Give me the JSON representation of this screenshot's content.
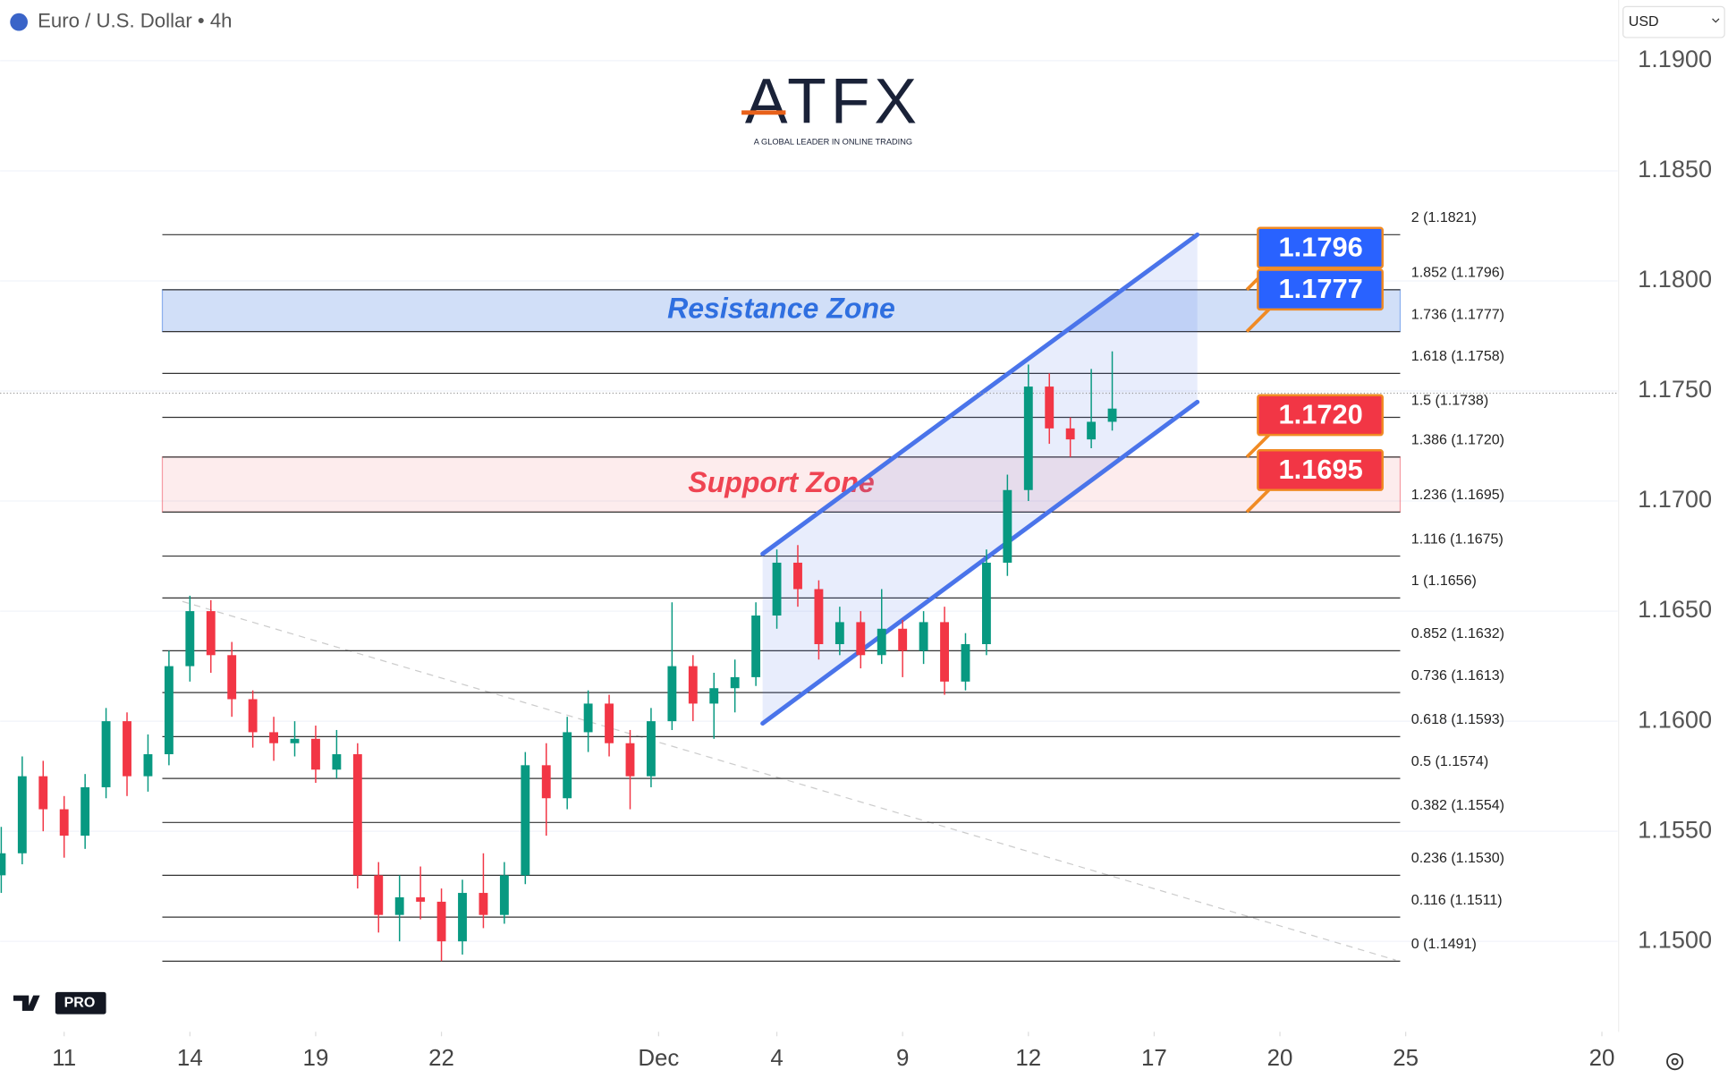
{
  "chart_data": {
    "type": "candlestick",
    "title": "Euro / U.S. Dollar • 4h",
    "currency": "USD",
    "brand": "ATFX",
    "brand_tagline": "A GLOBAL LEADER IN ONLINE TRADING",
    "badge": "PRO",
    "up_color": "#089981",
    "down_color": "#f23645",
    "x": [
      -1.5,
      -1,
      -0.5,
      0,
      0.5,
      1,
      1.5,
      2,
      2.5,
      3,
      3.5,
      4,
      4.5,
      5,
      5.5,
      6,
      6.5,
      7,
      7.5,
      8,
      8.5,
      9,
      9.5,
      10,
      10.5,
      11,
      11.5,
      12,
      12.5,
      13,
      13.5,
      14,
      14.5,
      15,
      15.5,
      16,
      16.5,
      17,
      17.5,
      18,
      18.5,
      19,
      19.5,
      20,
      20.5,
      21,
      21.5,
      22,
      22.5,
      23,
      23.5,
      24,
      24.5,
      25
    ],
    "open": [
      1.153,
      1.154,
      1.1575,
      1.156,
      1.1548,
      1.157,
      1.16,
      1.1575,
      1.1585,
      1.1625,
      1.165,
      1.163,
      1.161,
      1.1595,
      1.159,
      1.1592,
      1.1578,
      1.1585,
      1.153,
      1.1512,
      1.152,
      1.1518,
      1.15,
      1.1522,
      1.1512,
      1.153,
      1.158,
      1.1565,
      1.1595,
      1.1608,
      1.159,
      1.1575,
      1.16,
      1.1625,
      1.1608,
      1.1615,
      1.162,
      1.1648,
      1.1672,
      1.166,
      1.1635,
      1.1645,
      1.163,
      1.1642,
      1.1632,
      1.1645,
      1.1618,
      1.1635,
      1.1672,
      1.1705,
      1.1752,
      1.1733,
      1.1728,
      1.1736
    ],
    "high": [
      1.1552,
      1.1584,
      1.1582,
      1.1566,
      1.1576,
      1.1606,
      1.1604,
      1.1594,
      1.1632,
      1.1657,
      1.1655,
      1.1636,
      1.1614,
      1.1602,
      1.16,
      1.1598,
      1.1596,
      1.159,
      1.1536,
      1.153,
      1.1534,
      1.1524,
      1.1528,
      1.154,
      1.1536,
      1.1586,
      1.159,
      1.1602,
      1.1614,
      1.1612,
      1.1596,
      1.1606,
      1.1654,
      1.163,
      1.1622,
      1.1628,
      1.1654,
      1.1678,
      1.168,
      1.1664,
      1.1652,
      1.165,
      1.166,
      1.1646,
      1.165,
      1.1652,
      1.164,
      1.1678,
      1.1712,
      1.1762,
      1.1758,
      1.1738,
      1.176,
      1.1768
    ],
    "low": [
      1.1522,
      1.1535,
      1.155,
      1.1538,
      1.1542,
      1.1565,
      1.1566,
      1.1568,
      1.158,
      1.1618,
      1.1622,
      1.1602,
      1.1588,
      1.1582,
      1.1584,
      1.1572,
      1.1574,
      1.1524,
      1.1504,
      1.15,
      1.151,
      1.1491,
      1.1494,
      1.1506,
      1.1508,
      1.1526,
      1.1548,
      1.156,
      1.1586,
      1.1584,
      1.156,
      1.157,
      1.1596,
      1.16,
      1.1592,
      1.1604,
      1.1616,
      1.1642,
      1.1652,
      1.1628,
      1.163,
      1.1624,
      1.1626,
      1.162,
      1.1626,
      1.1612,
      1.1614,
      1.163,
      1.1666,
      1.17,
      1.1726,
      1.172,
      1.1724,
      1.1732
    ],
    "close": [
      1.154,
      1.1575,
      1.156,
      1.1548,
      1.157,
      1.16,
      1.1575,
      1.1585,
      1.1625,
      1.165,
      1.163,
      1.161,
      1.1595,
      1.159,
      1.1592,
      1.1578,
      1.1585,
      1.153,
      1.1512,
      1.152,
      1.1518,
      1.15,
      1.1522,
      1.1512,
      1.153,
      1.158,
      1.1565,
      1.1595,
      1.1608,
      1.159,
      1.1575,
      1.16,
      1.1625,
      1.1608,
      1.1615,
      1.162,
      1.1648,
      1.1672,
      1.166,
      1.1635,
      1.1645,
      1.163,
      1.1642,
      1.1632,
      1.1645,
      1.1618,
      1.1635,
      1.1672,
      1.1705,
      1.1752,
      1.1733,
      1.1728,
      1.1736,
      1.1742
    ],
    "xlim": [
      -1.5263,
      37.0526
    ],
    "xticks": [
      {
        "value": 0,
        "label": "11"
      },
      {
        "value": 3,
        "label": "14"
      },
      {
        "value": 6,
        "label": "19"
      },
      {
        "value": 9,
        "label": "22"
      },
      {
        "value": 14.18,
        "label": "Dec"
      },
      {
        "value": 17,
        "label": "4"
      },
      {
        "value": 20,
        "label": "9"
      },
      {
        "value": 23,
        "label": "12"
      },
      {
        "value": 26,
        "label": "17"
      },
      {
        "value": 29,
        "label": "20"
      },
      {
        "value": 32,
        "label": "25"
      },
      {
        "value": 36.68,
        "label": "20"
      }
    ],
    "ylim": [
      1.14589,
      1.19276
    ],
    "yticks": [
      {
        "value": 1.19,
        "label": "1.1900"
      },
      {
        "value": 1.185,
        "label": "1.1850"
      },
      {
        "value": 1.18,
        "label": "1.1800"
      },
      {
        "value": 1.175,
        "label": "1.1750"
      },
      {
        "value": 1.17,
        "label": "1.1700"
      },
      {
        "value": 1.165,
        "label": "1.1650"
      },
      {
        "value": 1.16,
        "label": "1.1600"
      },
      {
        "value": 1.155,
        "label": "1.1550"
      },
      {
        "value": 1.15,
        "label": "1.1500"
      }
    ],
    "grid": true,
    "last_price": 1.1749,
    "fib_levels": [
      {
        "value": 1.1821,
        "label": "2 (1.1821)"
      },
      {
        "value": 1.1796,
        "label": "1.852 (1.1796)"
      },
      {
        "value": 1.1777,
        "label": "1.736 (1.1777)"
      },
      {
        "value": 1.1758,
        "label": "1.618 (1.1758)"
      },
      {
        "value": 1.1738,
        "label": "1.5 (1.1738)"
      },
      {
        "value": 1.172,
        "label": "1.386 (1.1720)"
      },
      {
        "value": 1.1695,
        "label": "1.236 (1.1695)"
      },
      {
        "value": 1.1675,
        "label": "1.116 (1.1675)"
      },
      {
        "value": 1.1656,
        "label": "1 (1.1656)"
      },
      {
        "value": 1.1632,
        "label": "0.852 (1.1632)"
      },
      {
        "value": 1.1613,
        "label": "0.736 (1.1613)"
      },
      {
        "value": 1.1593,
        "label": "0.618 (1.1593)"
      },
      {
        "value": 1.1574,
        "label": "0.5 (1.1574)"
      },
      {
        "value": 1.1554,
        "label": "0.382 (1.1554)"
      },
      {
        "value": 1.153,
        "label": "0.236 (1.1530)"
      },
      {
        "value": 1.1511,
        "label": "0.116 (1.1511)"
      },
      {
        "value": 1.1491,
        "label": "0 (1.1491)"
      }
    ],
    "zones": [
      {
        "label": "Resistance Zone",
        "top": 1.1796,
        "bottom": 1.1777,
        "color": "#2f6fe0"
      },
      {
        "label": "Support Zone",
        "top": 1.172,
        "bottom": 1.1695,
        "color": "#ef4452"
      }
    ],
    "price_tags": [
      {
        "value": 1.1796,
        "label": "1.1796",
        "color": "#2962ff"
      },
      {
        "value": 1.1777,
        "label": "1.1777",
        "color": "#2962ff"
      },
      {
        "value": 1.172,
        "label": "1.1720",
        "color": "#f23645"
      },
      {
        "value": 1.1695,
        "label": "1.1695",
        "color": "#f23645"
      }
    ],
    "channel": {
      "x": [
        16.66,
        27.03
      ],
      "upper": [
        1.1676,
        1.1821
      ],
      "lower": [
        1.1599,
        1.1745
      ],
      "color": "#4a74ea"
    },
    "trendline": {
      "x": [
        2.82,
        31.76
      ],
      "values": [
        1.16544,
        1.14915
      ]
    }
  }
}
